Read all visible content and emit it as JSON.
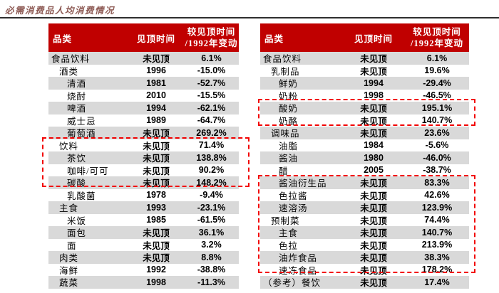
{
  "figure": {
    "title": "必需消费品人均消费情况"
  },
  "columns": {
    "category": "品类",
    "peak_time": "见顶时间",
    "change_line1": "较见顶时间",
    "change_line2": "/1992年变动"
  },
  "left_table": {
    "rows": [
      {
        "category": "食品饮料",
        "peak": "未见顶",
        "change": "6.1%",
        "indent": 0
      },
      {
        "category": "酒类",
        "peak": "1996",
        "change": "-15.0%",
        "indent": 1
      },
      {
        "category": "清酒",
        "peak": "1981",
        "change": "-52.7%",
        "indent": 2
      },
      {
        "category": "烧酎",
        "peak": "2010",
        "change": "-15.5%",
        "indent": 2
      },
      {
        "category": "啤酒",
        "peak": "1994",
        "change": "-62.1%",
        "indent": 2
      },
      {
        "category": "威士忌",
        "peak": "1989",
        "change": "-64.7%",
        "indent": 2
      },
      {
        "category": "葡萄酒",
        "peak": "未见顶",
        "change": "269.2%",
        "indent": 2
      },
      {
        "category": "饮料",
        "peak": "未见顶",
        "change": "71.4%",
        "indent": 1
      },
      {
        "category": "茶饮",
        "peak": "未见顶",
        "change": "138.8%",
        "indent": 2
      },
      {
        "category": "咖啡/可可",
        "peak": "未见顶",
        "change": "90.2%",
        "indent": 2
      },
      {
        "category": "碳酸",
        "peak": "未见顶",
        "change": "148.2%",
        "indent": 2
      },
      {
        "category": "乳酸菌",
        "peak": "1978",
        "change": "-9.4%",
        "indent": 2
      },
      {
        "category": "主食",
        "peak": "1993",
        "change": "-23.1%",
        "indent": 1
      },
      {
        "category": "米饭",
        "peak": "1985",
        "change": "-61.5%",
        "indent": 2
      },
      {
        "category": "面包",
        "peak": "未见顶",
        "change": "36.1%",
        "indent": 2
      },
      {
        "category": "面",
        "peak": "未见顶",
        "change": "3.2%",
        "indent": 2
      },
      {
        "category": "肉类",
        "peak": "未见顶",
        "change": "8.8%",
        "indent": 1
      },
      {
        "category": "海鲜",
        "peak": "1992",
        "change": "-38.8%",
        "indent": 1
      },
      {
        "category": "蔬菜",
        "peak": "1998",
        "change": "-11.3%",
        "indent": 1
      }
    ]
  },
  "right_table": {
    "rows": [
      {
        "category": "食品饮料",
        "peak": "未见顶",
        "change": "6.1%",
        "indent": 0
      },
      {
        "category": "乳制品",
        "peak": "未见顶",
        "change": "19.6%",
        "indent": 1
      },
      {
        "category": "鲜奶",
        "peak": "1994",
        "change": "-29.4%",
        "indent": 2
      },
      {
        "category": "奶粉",
        "peak": "1998",
        "change": "-46.5%",
        "indent": 2
      },
      {
        "category": "酸奶",
        "peak": "未见顶",
        "change": "195.1%",
        "indent": 2
      },
      {
        "category": "奶酪",
        "peak": "未见顶",
        "change": "140.7%",
        "indent": 2
      },
      {
        "category": "调味品",
        "peak": "未见顶",
        "change": "23.6%",
        "indent": 1
      },
      {
        "category": "油脂",
        "peak": "1984",
        "change": "-5.6%",
        "indent": 2
      },
      {
        "category": "酱油",
        "peak": "1980",
        "change": "-46.0%",
        "indent": 2
      },
      {
        "category": "醋",
        "peak": "2005",
        "change": "-38.7%",
        "indent": 2
      },
      {
        "category": "酱油衍生品",
        "peak": "未见顶",
        "change": "83.3%",
        "indent": 2
      },
      {
        "category": "色拉酱",
        "peak": "未见顶",
        "change": "42.6%",
        "indent": 2
      },
      {
        "category": "速溶汤",
        "peak": "未见顶",
        "change": "123.9%",
        "indent": 2
      },
      {
        "category": "预制菜",
        "peak": "未见顶",
        "change": "74.4%",
        "indent": 1
      },
      {
        "category": "主食",
        "peak": "未见顶",
        "change": "140.7%",
        "indent": 2
      },
      {
        "category": "色拉",
        "peak": "未见顶",
        "change": "213.9%",
        "indent": 2
      },
      {
        "category": "油炸食品",
        "peak": "未见顶",
        "change": "38.3%",
        "indent": 2
      },
      {
        "category": "速冻食品",
        "peak": "未见顶",
        "change": "178.2%",
        "indent": 2
      },
      {
        "category": "（参考）餐饮",
        "peak": "未见顶",
        "change": "17.4%",
        "indent": 0
      }
    ]
  },
  "colors": {
    "header_bg": "#C00000",
    "alt_row_bg": "#D9D9D9",
    "highlight_border": "#F20000",
    "title_text": "#8E5B55"
  }
}
